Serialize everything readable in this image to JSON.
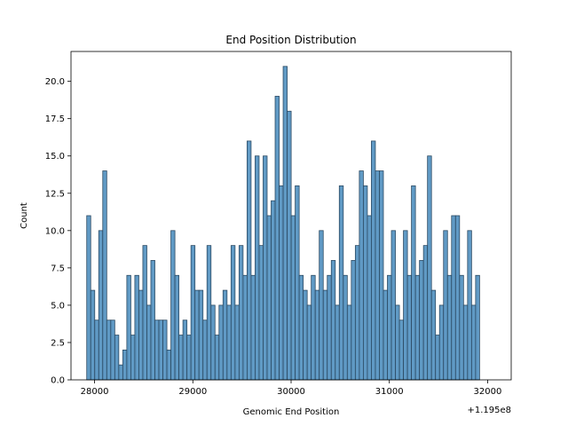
{
  "chart_data": {
    "type": "bar",
    "title": "End Position Distribution",
    "xlabel": "Genomic End Position",
    "ylabel": "Count",
    "x_offset_label": "+1.195e8",
    "xlim": [
      27760,
      32240
    ],
    "ylim": [
      0,
      22
    ],
    "grid": false,
    "x_ticks": [
      {
        "value": 28000,
        "label": "28000"
      },
      {
        "value": 29000,
        "label": "29000"
      },
      {
        "value": 30000,
        "label": "30000"
      },
      {
        "value": 31000,
        "label": "31000"
      },
      {
        "value": 32000,
        "label": "32000"
      }
    ],
    "y_ticks": [
      {
        "value": 0,
        "label": "0.0"
      },
      {
        "value": 2.5,
        "label": "2.5"
      },
      {
        "value": 5,
        "label": "5.0"
      },
      {
        "value": 7.5,
        "label": "7.5"
      },
      {
        "value": 10,
        "label": "10.0"
      },
      {
        "value": 12.5,
        "label": "12.5"
      },
      {
        "value": 15,
        "label": "15.0"
      },
      {
        "value": 17.5,
        "label": "17.5"
      },
      {
        "value": 20,
        "label": "20.0"
      }
    ],
    "bin_start": 27920,
    "bin_width": 40.8,
    "counts": [
      11,
      6,
      4,
      10,
      14,
      4,
      4,
      3,
      1,
      2,
      7,
      3,
      7,
      6,
      9,
      5,
      8,
      4,
      4,
      4,
      2,
      10,
      7,
      3,
      4,
      3,
      9,
      6,
      6,
      4,
      9,
      5,
      3,
      5,
      6,
      5,
      9,
      5,
      9,
      7,
      16,
      7,
      15,
      9,
      15,
      11,
      12,
      19,
      13,
      21,
      18,
      11,
      13,
      7,
      6,
      5,
      7,
      6,
      10,
      6,
      7,
      8,
      5,
      13,
      7,
      5,
      8,
      9,
      14,
      13,
      11,
      16,
      14,
      14,
      6,
      7,
      10,
      5,
      4,
      10,
      7,
      13,
      7,
      8,
      9,
      15,
      6,
      3,
      5,
      10,
      7,
      11,
      11,
      7,
      5,
      10,
      5,
      7
    ]
  }
}
